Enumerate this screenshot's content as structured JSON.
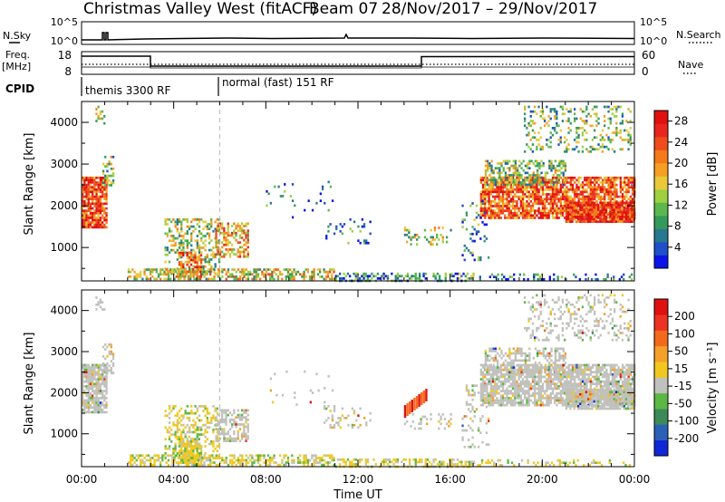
{
  "header": {
    "station": "Christmas Valley West (fitACF)",
    "beam": "Beam 07",
    "date_range": "28/Nov/2017 – 29/Nov/2017"
  },
  "side_labels": {
    "nsky": "N.Sky",
    "freq_line1": "Freq.",
    "freq_line2": "[MHz]",
    "cpid": "CPID",
    "nsearch": "N.Search",
    "nave": "Nave"
  },
  "strip_axes": {
    "nsky_ticks": [
      "10^5",
      "10^0"
    ],
    "nsearch_ticks": [
      "10^5",
      "10^0"
    ],
    "freq_ticks": [
      "18",
      "8"
    ],
    "nave_ticks": [
      "60",
      "0"
    ]
  },
  "cpid_segments": [
    {
      "label": "themis 3300 RF",
      "start_hour": 0,
      "end_hour": 6
    },
    {
      "label": "normal (fast) 151 RF",
      "start_hour": 6,
      "end_hour": 24
    }
  ],
  "chart_data": [
    {
      "type": "heatmap",
      "name": "power",
      "ylabel": "Slant Range [km]",
      "xlabel": "",
      "xlim": [
        0,
        24
      ],
      "ylim": [
        200,
        4500
      ],
      "y_ticks": [
        1000,
        2000,
        3000,
        4000
      ],
      "colorbar": {
        "label": "Power [dB]",
        "ticks": [
          4,
          8,
          12,
          16,
          20,
          24,
          28
        ],
        "range": [
          0,
          30
        ],
        "colors": [
          "#0a14e6",
          "#2050c8",
          "#287890",
          "#349a5c",
          "#5cb84c",
          "#9ed040",
          "#eac83a",
          "#f5a023",
          "#f47a1a",
          "#ee4c1c",
          "#e8261e",
          "#e01010"
        ]
      }
    },
    {
      "type": "heatmap",
      "name": "velocity",
      "ylabel": "Slant Range [km]",
      "xlabel": "Time UT",
      "xlim": [
        0,
        24
      ],
      "ylim": [
        200,
        4500
      ],
      "y_ticks": [
        1000,
        2000,
        3000,
        4000
      ],
      "x_tick_labels": [
        "00:00",
        "04:00",
        "08:00",
        "12:00",
        "16:00",
        "20:00",
        "00:00"
      ],
      "colorbar": {
        "label": "Velocity [m s⁻¹]",
        "ticks": [
          "200",
          "100",
          "50",
          "15",
          "-15",
          "-50",
          "-100",
          "-200"
        ],
        "colors": [
          "#1028d8",
          "#2a60b8",
          "#3c8a58",
          "#5cb844",
          "#c0c0bc",
          "#f0c820",
          "#f4a02a",
          "#f46a1c",
          "#ec3220",
          "#e01010"
        ]
      }
    }
  ]
}
